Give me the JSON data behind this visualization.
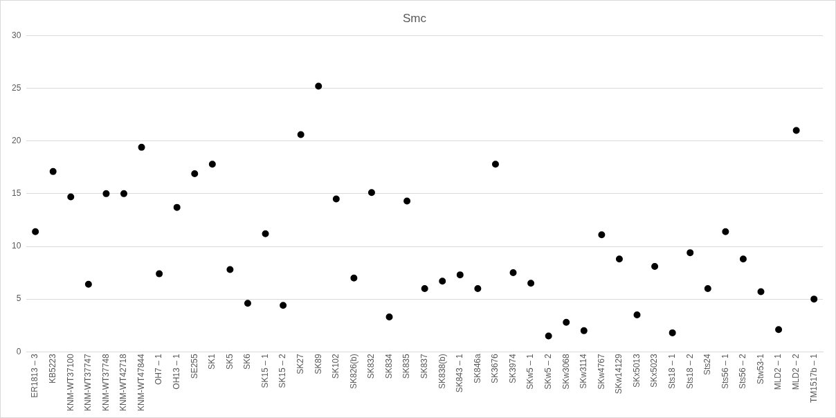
{
  "chart_data": {
    "type": "scatter",
    "title": "Smc",
    "categories": [
      "ER1813 – 3",
      "KB5223",
      "KNM-WT37100",
      "KNM-WT37747",
      "KNM-WT37748",
      "KNM-WT42718",
      "KNM-WT47844",
      "OH7 – 1",
      "OH13 – 1",
      "SE255",
      "SK1",
      "SK5",
      "SK6",
      "SK15 – 1",
      "SK15 – 2",
      "SK27",
      "SK89",
      "SK102",
      "SK826(b)",
      "SK832",
      "SK834",
      "SK835",
      "SK837",
      "SK838(b)",
      "SK843 – 1",
      "SK846a",
      "SK3676",
      "SK3974",
      "SKw5 – 1",
      "SKw5 – 2",
      "SKw3068",
      "SKw3114",
      "SKw4767",
      "SKw14129",
      "SKx5013",
      "SKx5023",
      "Sts18 – 1",
      "Sts18 – 2",
      "Sts24",
      "Sts56 – 1",
      "Sts56 – 2",
      "Stw53-1",
      "MLD2 – 1",
      "MLD2 – 2",
      "TM1517b – 1"
    ],
    "values": [
      11.4,
      17.1,
      14.7,
      6.4,
      15.0,
      15.0,
      19.4,
      7.4,
      13.7,
      16.9,
      17.8,
      7.8,
      4.6,
      11.2,
      4.4,
      20.6,
      25.2,
      14.5,
      7.0,
      15.1,
      3.3,
      14.3,
      6.0,
      6.7,
      7.3,
      6.0,
      17.8,
      7.5,
      6.5,
      1.5,
      2.8,
      2.0,
      11.1,
      8.8,
      3.5,
      8.1,
      1.8,
      9.4,
      6.0,
      11.4,
      8.8,
      5.7,
      2.1,
      21.0,
      5.0
    ],
    "color": "#000000",
    "marker": "circle",
    "ylim": [
      0,
      30
    ],
    "yticks": [
      0,
      5,
      10,
      15,
      20,
      25,
      30
    ],
    "grid": "y",
    "legend": false
  }
}
